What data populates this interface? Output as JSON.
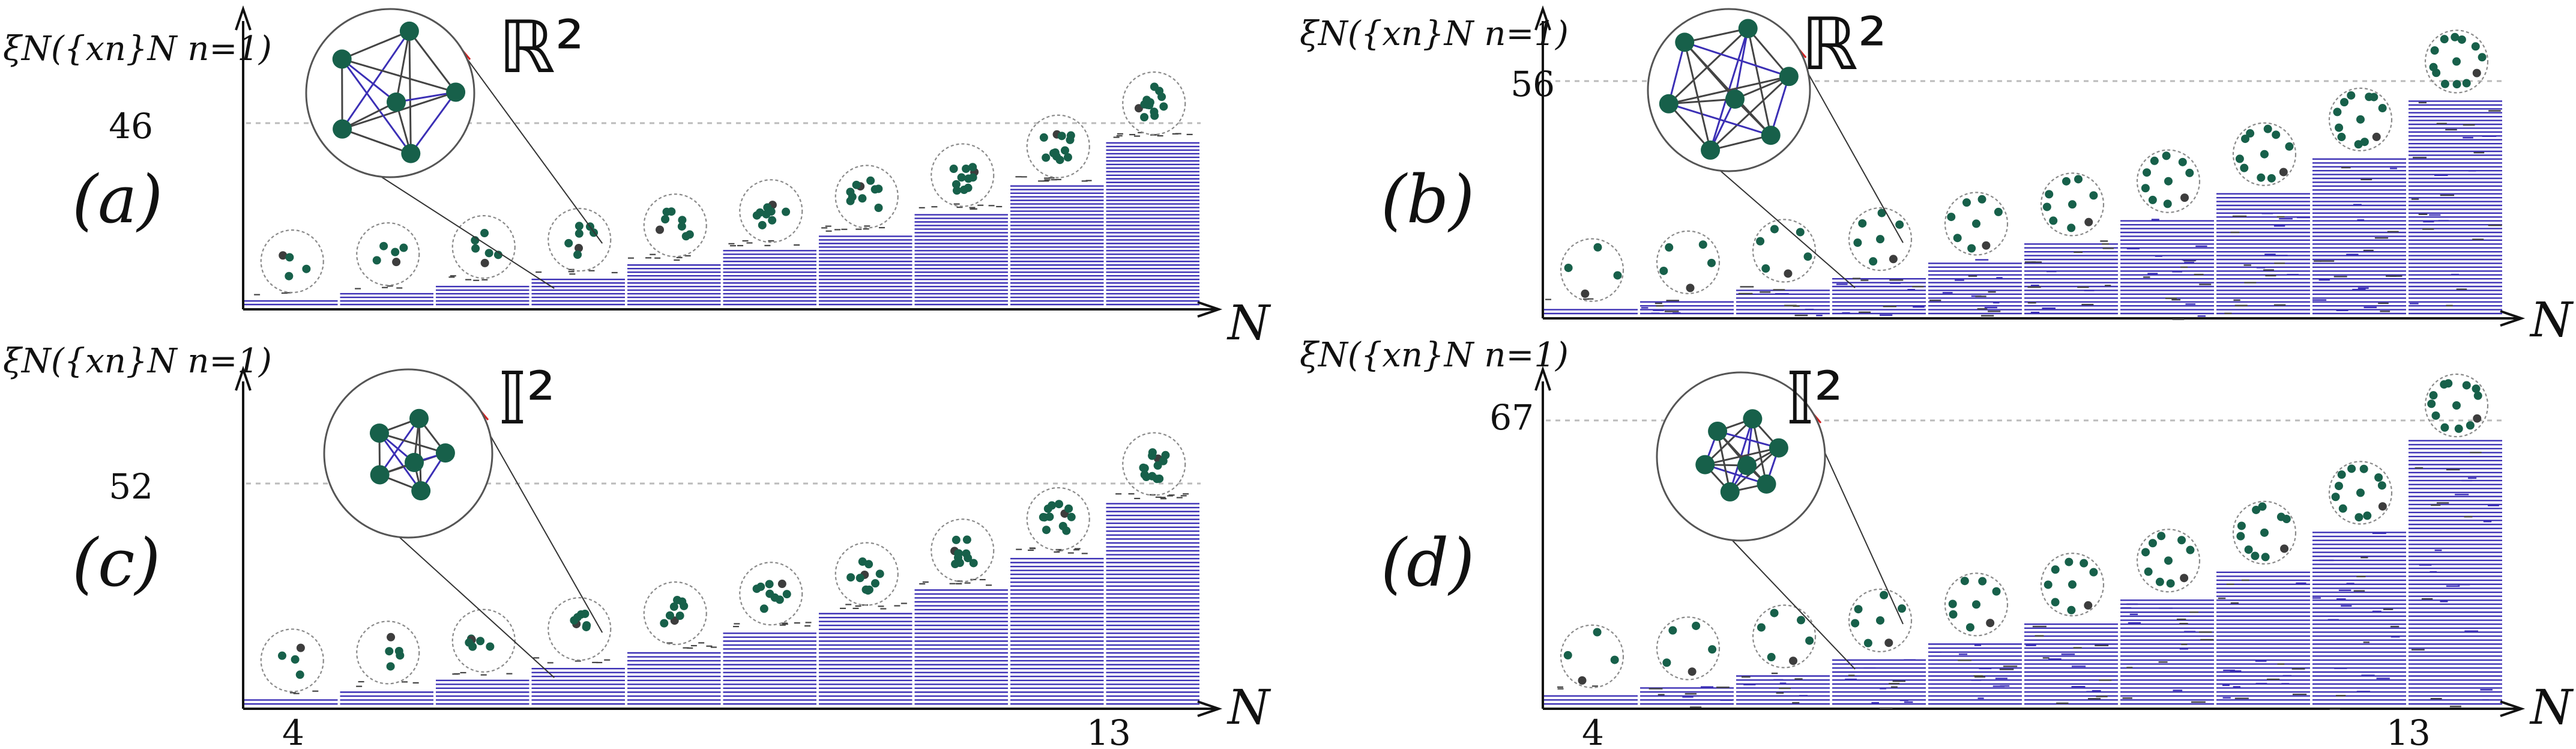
{
  "panels": [
    {
      "id": "a",
      "panel_label": "(a)",
      "space_label": "ℝ²",
      "y_axis_label": "ξN({xn}N n=1)",
      "highlight_value": "46",
      "x_axis_label": "N",
      "x_tick_start": "",
      "x_tick_end": "",
      "N_values": [
        4,
        5,
        6,
        7,
        8,
        9,
        10,
        11,
        12,
        13
      ],
      "levels_per_N": [
        2,
        4,
        6,
        8,
        12,
        16,
        20,
        26,
        34,
        46
      ],
      "extra_dashes": false
    },
    {
      "id": "b",
      "panel_label": "(b)",
      "space_label": "ℝ²",
      "y_axis_label": "ξN({xn}N n=1)",
      "highlight_value": "56",
      "x_axis_label": "N",
      "x_tick_start": "",
      "x_tick_end": "",
      "N_values": [
        4,
        5,
        6,
        7,
        8,
        9,
        10,
        11,
        12,
        13
      ],
      "levels_per_N": [
        2,
        4,
        7,
        10,
        14,
        19,
        25,
        32,
        41,
        56
      ],
      "extra_dashes": true
    },
    {
      "id": "c",
      "panel_label": "(c)",
      "space_label": "𝕀²",
      "y_axis_label": "ξN({xn}N n=1)",
      "highlight_value": "52",
      "x_axis_label": "N",
      "x_tick_start": "4",
      "x_tick_end": "13",
      "N_values": [
        4,
        5,
        6,
        7,
        8,
        9,
        10,
        11,
        12,
        13
      ],
      "levels_per_N": [
        2,
        4,
        7,
        10,
        14,
        19,
        24,
        30,
        38,
        52
      ],
      "extra_dashes": false
    },
    {
      "id": "d",
      "panel_label": "(d)",
      "space_label": "𝕀²",
      "y_axis_label": "ξN({xn}N n=1)",
      "highlight_value": "67",
      "x_axis_label": "N",
      "x_tick_start": "4",
      "x_tick_end": "13",
      "N_values": [
        4,
        5,
        6,
        7,
        8,
        9,
        10,
        11,
        12,
        13
      ],
      "levels_per_N": [
        3,
        5,
        8,
        12,
        16,
        21,
        27,
        34,
        44,
        67
      ],
      "extra_dashes": true
    }
  ],
  "colors": {
    "line": "#3b2fb5",
    "node": "#17604a",
    "node_dark": "#3d3d3d",
    "circle": "#8a8a8a",
    "axis": "#111111",
    "dash_guide": "#bbbbbb",
    "zoom_line": "#d02020"
  }
}
